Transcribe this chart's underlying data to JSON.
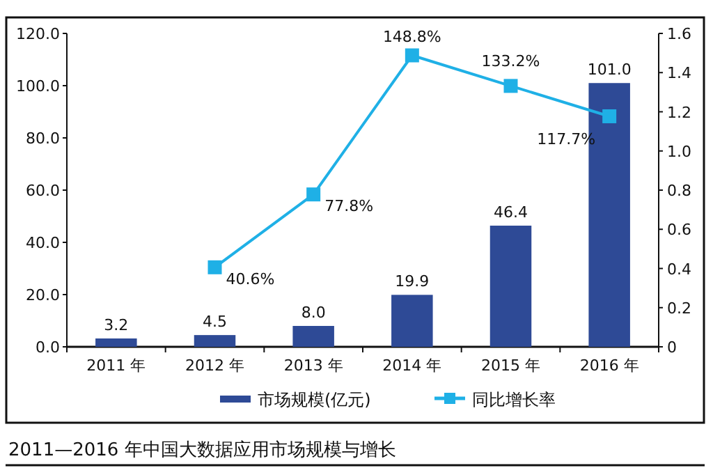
{
  "chart_data": {
    "type": "bar",
    "title": "2011—2016 年中国大数据应用市场规模与增长",
    "categories": [
      "2011 年",
      "2012 年",
      "2013 年",
      "2014 年",
      "2015 年",
      "2016 年"
    ],
    "series": [
      {
        "name": "市场规模(亿元)",
        "color": "#2e4a96",
        "values": [
          3.2,
          4.5,
          8.0,
          19.9,
          46.4,
          101.0
        ],
        "value_labels": [
          "3.2",
          "4.5",
          "8.0",
          "19.9",
          "46.4",
          "101.0"
        ]
      },
      {
        "name": "同比增长率",
        "type": "line",
        "axis": "y2",
        "color": "#1fb0e6",
        "values": [
          null,
          0.406,
          0.778,
          1.488,
          1.332,
          1.177
        ],
        "value_labels": [
          null,
          "40.6%",
          "77.8%",
          "148.8%",
          "133.2%",
          "117.7%"
        ]
      }
    ],
    "ylim": [
      0,
      120
    ],
    "yticks": [
      {
        "value": 0,
        "label": "0.0"
      },
      {
        "value": 20,
        "label": "20.0"
      },
      {
        "value": 40,
        "label": "40.0"
      },
      {
        "value": 60,
        "label": "60.0"
      },
      {
        "value": 80,
        "label": "80.0"
      },
      {
        "value": 100,
        "label": "100.0"
      },
      {
        "value": 120,
        "label": "120.0"
      }
    ],
    "y2lim": [
      0,
      1.6
    ],
    "y2ticks": [
      0,
      {
        "value": 0.2,
        "label": "0.2"
      },
      {
        "value": 0.4,
        "label": "0.4"
      },
      {
        "value": 0.6,
        "label": "0.6"
      },
      {
        "value": 0.8,
        "label": "0.8"
      },
      {
        "value": 1,
        "label": "1.0"
      },
      {
        "value": 1.2,
        "label": "1.2"
      },
      {
        "value": 1.4,
        "label": "1.4"
      },
      {
        "value": 1.6,
        "label": "1.6"
      }
    ],
    "legend": "bottom",
    "marker": "square",
    "grid": false
  }
}
